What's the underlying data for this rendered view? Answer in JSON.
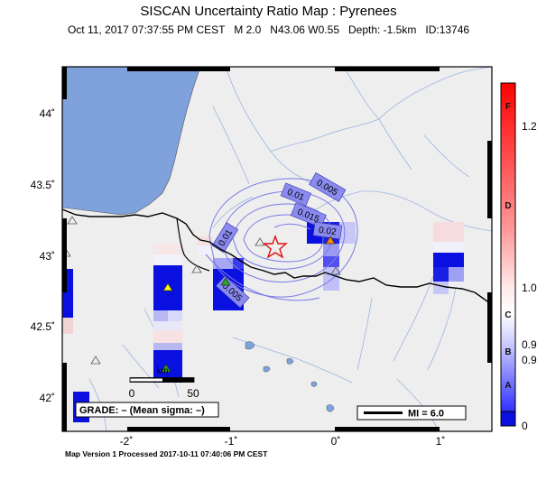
{
  "header": {
    "title": "SISCAN Uncertainty Ratio Map : Pyrenees",
    "subtitle": "Oct 11, 2017 07:37:55 PM CEST   M 2.0   N43.06 W0.55   Depth: -1.5km   ID:13746"
  },
  "map": {
    "lat_ticks": [
      "44˚",
      "43.5˚",
      "43˚",
      "42.5˚",
      "42˚"
    ],
    "lon_ticks": [
      "-2˚",
      "-1˚",
      "0˚",
      "1˚"
    ],
    "contour_labels": [
      "0.01",
      "0.005",
      "0.015",
      "0.02",
      "0.01",
      "0.005"
    ],
    "scale_bar": {
      "label": "km",
      "start": "0",
      "end": "50"
    },
    "grade_text": "GRADE: – (Mean sigma: –)",
    "mi_text": "MI = 6.0",
    "colors": {
      "water": "#7fa2dc",
      "land": "#eeeeee",
      "grid_blue": "#0a10e0",
      "contour": "#7a7ae8",
      "border": "#000000"
    }
  },
  "colorbar": {
    "letters": [
      "F",
      "D",
      "C",
      "B",
      "A"
    ],
    "values": [
      "1.2",
      "1.0",
      "0.9",
      "0.9",
      "0"
    ]
  },
  "footer": "Map Version 1 Processed 2017-10-11 07:40:06 PM CEST"
}
